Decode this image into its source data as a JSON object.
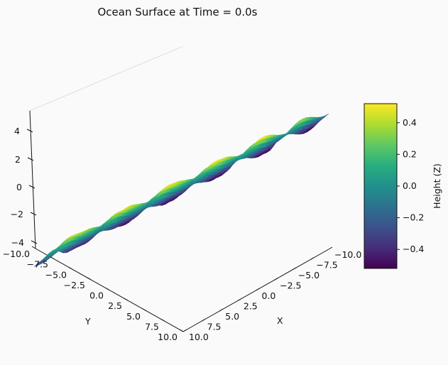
{
  "chart_data": {
    "type": "surface3d",
    "title": "Ocean Surface at Time = 0.0s",
    "xlabel": "X",
    "ylabel": "Y",
    "zlabel": "",
    "colorbar_label": "Height (Z)",
    "colormap": "viridis",
    "x_range": [
      -10,
      10
    ],
    "y_range": [
      -10,
      10
    ],
    "z_range": [
      -5,
      5
    ],
    "color_range": [
      -0.52,
      0.52
    ],
    "x_ticks": [
      "−10.0",
      "−7.5",
      "−5.0",
      "−2.5",
      "0.0",
      "2.5",
      "5.0",
      "7.5",
      "10.0"
    ],
    "y_ticks": [
      "−10.0",
      "−7.5",
      "−5.0",
      "−2.5",
      "0.0",
      "2.5",
      "5.0",
      "7.5",
      "10.0"
    ],
    "z_ticks": [
      "4",
      "2",
      "0",
      "−2",
      "−4"
    ],
    "colorbar_ticks": [
      "0.4",
      "0.2",
      "0.0",
      "−0.2",
      "−0.4"
    ],
    "colorbar_tick_values": [
      0.4,
      0.2,
      0.0,
      -0.2,
      -0.4
    ],
    "surface_function": "z = 0.3*sin(x) + 0.2*cos(y) waves, amplitude about 0.5",
    "grid": false
  }
}
